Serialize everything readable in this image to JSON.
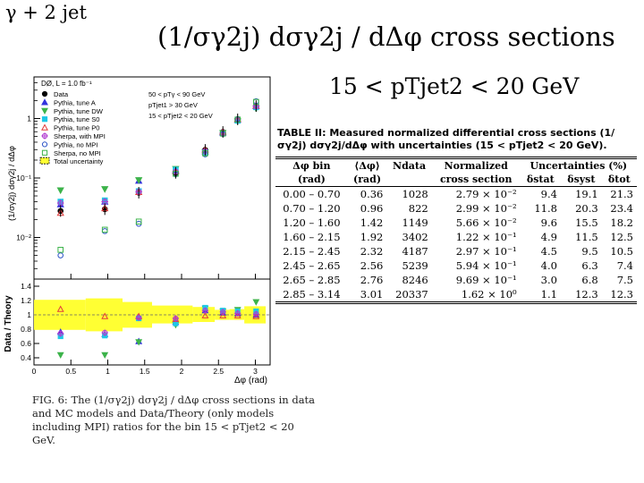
{
  "corner_title": "γ + 2 jet",
  "main_title": "(1/σγ2j) dσγ2j / dΔφ  cross sections",
  "sub_title": "15 < pTjet2 < 20 GeV",
  "figure_caption": "FIG. 6: The (1/σγ2j) dσγ2j / dΔφ cross sections in data and MC models and Data/Theory (only models including MPI) ratios for the bin 15 < pTjet2 < 20 GeV.",
  "table": {
    "caption": "TABLE II: Measured normalized differential cross sections (1/σγ2j) dσγ2j/dΔφ with uncertainties (15 < pTjet2 < 20 GeV).",
    "headers": {
      "dphi_bin": "Δφ bin",
      "dphi_bin_unit": "(rad)",
      "mean_dphi": "⟨Δφ⟩",
      "mean_dphi_unit": "(rad)",
      "ndata": "Ndata",
      "norm": "Normalized",
      "norm2": "cross section",
      "unc": "Uncertainties (%)",
      "stat": "δstat",
      "syst": "δsyst",
      "tot": "δtot"
    },
    "rows": [
      [
        "0.00 – 0.70",
        "0.36",
        "1028",
        "2.79 × 10⁻²",
        "9.4",
        "19.1",
        "21.3"
      ],
      [
        "0.70 – 1.20",
        "0.96",
        "822",
        "2.99 × 10⁻²",
        "11.8",
        "20.3",
        "23.4"
      ],
      [
        "1.20 – 1.60",
        "1.42",
        "1149",
        "5.66 × 10⁻²",
        "9.6",
        "15.5",
        "18.2"
      ],
      [
        "1.60 – 2.15",
        "1.92",
        "3402",
        "1.22 × 10⁻¹",
        "4.9",
        "11.5",
        "12.5"
      ],
      [
        "2.15 – 2.45",
        "2.32",
        "4187",
        "2.97 × 10⁻¹",
        "4.5",
        "9.5",
        "10.5"
      ],
      [
        "2.45 – 2.65",
        "2.56",
        "5239",
        "5.94 × 10⁻¹",
        "4.0",
        "6.3",
        "7.4"
      ],
      [
        "2.65 – 2.85",
        "2.76",
        "8246",
        "9.69 × 10⁻¹",
        "3.0",
        "6.8",
        "7.5"
      ],
      [
        "2.85 – 3.14",
        "3.01",
        "20337",
        "1.62 × 10⁰",
        "1.1",
        "12.3",
        "12.3"
      ]
    ]
  },
  "chart_data": [
    {
      "type": "scatter",
      "ylabel": "(1/σγ2j) dσγ2j / dΔφ",
      "yscale": "log",
      "ylim": [
        0.002,
        5
      ],
      "xlim": [
        0,
        3.2
      ],
      "x": [
        0.36,
        0.96,
        1.42,
        1.92,
        2.32,
        2.56,
        2.76,
        3.01
      ],
      "experiment_label": "DØ, L = 1.0 fb⁻¹",
      "cuts": [
        "50 < pTγ < 90 GeV",
        "pTjet1 > 30 GeV",
        "15 < pTjet2 < 20 GeV"
      ],
      "legend_position": "top-left",
      "series": [
        {
          "name": "Data",
          "color": "#000000",
          "marker": "filled-circle",
          "values": [
            0.0279,
            0.0299,
            0.0566,
            0.122,
            0.297,
            0.594,
            0.969,
            1.62
          ]
        },
        {
          "name": "Pythia, tune A",
          "color": "#3333dd",
          "marker": "filled-triangle-up",
          "values": [
            0.036,
            0.04,
            0.09,
            0.135,
            0.28,
            0.58,
            0.95,
            1.62
          ]
        },
        {
          "name": "Pythia, tune DW",
          "color": "#3cb34a",
          "marker": "filled-triangle-down",
          "values": [
            0.062,
            0.065,
            0.092,
            0.142,
            0.27,
            0.57,
            0.9,
            1.48
          ]
        },
        {
          "name": "Pythia, tune S0",
          "color": "#1ec8e6",
          "marker": "filled-square",
          "values": [
            0.04,
            0.042,
            0.06,
            0.138,
            0.27,
            0.56,
            0.92,
            1.55
          ]
        },
        {
          "name": "Pythia, tune P0",
          "color": "#e23b3b",
          "marker": "open-triangle-up",
          "values": [
            0.026,
            0.031,
            0.058,
            0.13,
            0.3,
            0.6,
            0.98,
            1.65
          ]
        },
        {
          "name": "Sherpa, with MPI",
          "color": "#b13ad0",
          "marker": "open-cross",
          "values": [
            0.038,
            0.04,
            0.059,
            0.128,
            0.28,
            0.57,
            0.95,
            1.6
          ]
        },
        {
          "name": "Pythia, no MPI",
          "color": "#2f55c8",
          "marker": "open-circle",
          "values": [
            0.005,
            0.0128,
            0.017,
            0.115,
            0.25,
            0.55,
            0.98,
            1.95
          ]
        },
        {
          "name": "Sherpa, no MPI",
          "color": "#3cb34a",
          "marker": "open-square",
          "values": [
            0.0062,
            0.0135,
            0.0185,
            0.118,
            0.26,
            0.56,
            0.96,
            1.9
          ]
        }
      ],
      "band": {
        "name": "Total uncertainty",
        "color": "#ffff33"
      }
    },
    {
      "type": "scatter",
      "xlabel": "Δφ (rad)",
      "ylabel": "Data / Theory",
      "ylim": [
        0.3,
        1.5
      ],
      "xlim": [
        0,
        3.2
      ],
      "yticks": [
        0.4,
        0.6,
        0.8,
        1,
        1.2,
        1.4
      ],
      "xticks": [
        0,
        0.5,
        1,
        1.5,
        2,
        2.5,
        3
      ],
      "x": [
        0.36,
        0.96,
        1.42,
        1.92,
        2.32,
        2.56,
        2.76,
        3.01
      ],
      "series": [
        {
          "name": "Pythia, tune A",
          "color": "#3333dd",
          "marker": "filled-triangle-up",
          "values": [
            0.76,
            0.73,
            0.63,
            0.9,
            1.06,
            1.03,
            1.02,
            1.0
          ]
        },
        {
          "name": "Pythia, tune DW",
          "color": "#3cb34a",
          "marker": "filled-triangle-down",
          "values": [
            0.44,
            0.44,
            0.62,
            0.86,
            1.09,
            1.05,
            1.07,
            1.18
          ]
        },
        {
          "name": "Pythia, tune S0",
          "color": "#1ec8e6",
          "marker": "filled-square",
          "values": [
            0.7,
            0.71,
            0.95,
            0.88,
            1.1,
            1.06,
            1.05,
            1.05
          ]
        },
        {
          "name": "Pythia, tune P0",
          "color": "#e23b3b",
          "marker": "open-triangle-up",
          "values": [
            1.08,
            0.98,
            0.98,
            0.94,
            0.99,
            0.99,
            0.99,
            0.98
          ]
        },
        {
          "name": "Sherpa, with MPI",
          "color": "#b13ad0",
          "marker": "open-cross",
          "values": [
            0.74,
            0.75,
            0.96,
            0.95,
            1.06,
            1.04,
            1.02,
            1.01
          ]
        }
      ],
      "band": {
        "name": "Total uncertainty",
        "color": "#ffff33",
        "lower": [
          0.79,
          0.77,
          0.82,
          0.88,
          0.9,
          0.93,
          0.93,
          0.88
        ],
        "upper": [
          1.21,
          1.23,
          1.18,
          1.13,
          1.11,
          1.07,
          1.08,
          1.12
        ]
      }
    }
  ]
}
